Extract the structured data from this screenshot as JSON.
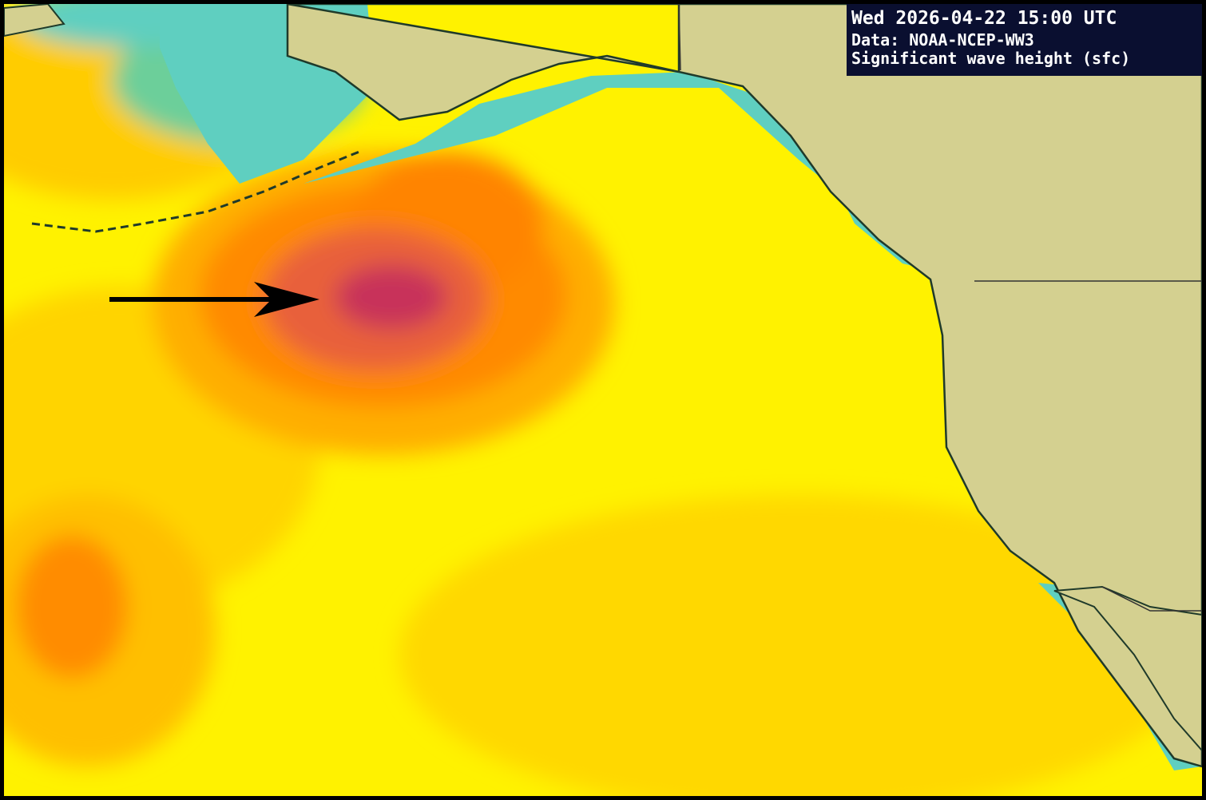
{
  "overlay": {
    "datetime": "Wed 2026-04-22 15:00 UTC",
    "source": "Data: NOAA-NCEP-WW3",
    "field": "Significant wave height (sfc)"
  }
}
